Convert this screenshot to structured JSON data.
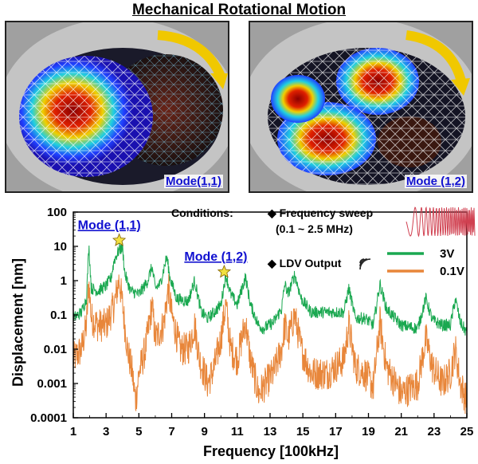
{
  "header": {
    "title": "Mechanical Rotational Motion"
  },
  "panels": [
    {
      "label": "Mode(1,1)"
    },
    {
      "label": "Mode (1,2)"
    }
  ],
  "conditions": {
    "label": "Conditions:",
    "sweep": "◆ Frequency sweep",
    "range": "(0.1 ~ 2.5 MHz)",
    "ldv": "◆ LDV Output"
  },
  "annotations": [
    {
      "text": "Mode (1,1)",
      "freq": 3.8,
      "value": 15
    },
    {
      "text": "Mode (1,2)",
      "freq": 10.2,
      "value": 1.8
    }
  ],
  "colors": {
    "series_3v": "#1aa850",
    "series_01v": "#e8863a",
    "annotation": "#1010d0",
    "star": "#f2e040"
  },
  "chart_data": {
    "type": "line",
    "title": "",
    "xlabel": "Frequency [100kHz]",
    "ylabel": "Displacement [nm]",
    "xlim": [
      1,
      25
    ],
    "ylim": [
      0.0001,
      100
    ],
    "yscale": "log",
    "xticks": [
      1,
      3,
      5,
      7,
      9,
      11,
      13,
      15,
      17,
      19,
      21,
      23,
      25
    ],
    "yticks": [
      0.0001,
      0.001,
      0.01,
      0.1,
      1,
      10,
      100
    ],
    "ytick_labels": [
      "0.0001",
      "0.001",
      "0.01",
      "0.1",
      "1",
      "10",
      "100"
    ],
    "legend": "right",
    "series": [
      {
        "name": "3V",
        "color": "#1aa850",
        "noise": 0.18,
        "points": [
          [
            1.0,
            0.08
          ],
          [
            1.5,
            0.12
          ],
          [
            1.8,
            0.3
          ],
          [
            1.95,
            10
          ],
          [
            2.1,
            0.6
          ],
          [
            2.5,
            0.5
          ],
          [
            3.0,
            0.7
          ],
          [
            3.3,
            1.2
          ],
          [
            3.5,
            4
          ],
          [
            3.8,
            8
          ],
          [
            4.0,
            9
          ],
          [
            4.15,
            1.5
          ],
          [
            4.5,
            0.5
          ],
          [
            5.0,
            0.4
          ],
          [
            5.5,
            0.9
          ],
          [
            5.8,
            2.5
          ],
          [
            6.0,
            0.6
          ],
          [
            6.3,
            0.8
          ],
          [
            6.7,
            5
          ],
          [
            6.9,
            1.2
          ],
          [
            7.3,
            0.3
          ],
          [
            8.0,
            0.25
          ],
          [
            8.4,
            1.0
          ],
          [
            8.8,
            0.12
          ],
          [
            9.2,
            0.08
          ],
          [
            9.6,
            0.12
          ],
          [
            10.0,
            0.2
          ],
          [
            10.3,
            1.5
          ],
          [
            10.6,
            0.4
          ],
          [
            11.0,
            0.2
          ],
          [
            11.5,
            1.3
          ],
          [
            11.8,
            0.2
          ],
          [
            12.3,
            0.05
          ],
          [
            12.6,
            0.04
          ],
          [
            13.2,
            0.06
          ],
          [
            13.7,
            0.15
          ],
          [
            13.9,
            0.8
          ],
          [
            14.1,
            0.4
          ],
          [
            14.5,
            1.5
          ],
          [
            14.9,
            0.3
          ],
          [
            15.5,
            0.12
          ],
          [
            16.5,
            0.12
          ],
          [
            17.5,
            0.12
          ],
          [
            17.8,
            0.6
          ],
          [
            18.2,
            0.08
          ],
          [
            18.8,
            0.08
          ],
          [
            19.3,
            0.05
          ],
          [
            19.7,
            0.8
          ],
          [
            20.1,
            0.15
          ],
          [
            21.0,
            0.05
          ],
          [
            22.0,
            0.04
          ],
          [
            22.5,
            0.3
          ],
          [
            22.9,
            0.07
          ],
          [
            23.5,
            0.05
          ],
          [
            24.0,
            0.05
          ],
          [
            24.3,
            0.3
          ],
          [
            24.6,
            0.06
          ],
          [
            25.0,
            0.03
          ]
        ]
      },
      {
        "name": "0.1V",
        "color": "#e8863a",
        "noise": 0.5,
        "points": [
          [
            1.0,
            0.005
          ],
          [
            1.5,
            0.01
          ],
          [
            1.8,
            0.05
          ],
          [
            1.95,
            0.9
          ],
          [
            2.1,
            0.08
          ],
          [
            2.5,
            0.05
          ],
          [
            3.0,
            0.05
          ],
          [
            3.5,
            0.2
          ],
          [
            3.8,
            1.1
          ],
          [
            4.0,
            0.2
          ],
          [
            4.3,
            0.01
          ],
          [
            4.6,
            0.002
          ],
          [
            4.8,
            0.0003
          ],
          [
            5.0,
            0.002
          ],
          [
            5.4,
            0.01
          ],
          [
            5.8,
            0.2
          ],
          [
            6.0,
            0.02
          ],
          [
            6.5,
            0.05
          ],
          [
            6.8,
            0.6
          ],
          [
            7.0,
            0.1
          ],
          [
            7.5,
            0.01
          ],
          [
            8.0,
            0.01
          ],
          [
            8.4,
            0.05
          ],
          [
            8.7,
            0.005
          ],
          [
            9.2,
            0.001
          ],
          [
            9.6,
            0.003
          ],
          [
            10.0,
            0.02
          ],
          [
            10.3,
            0.2
          ],
          [
            10.6,
            0.01
          ],
          [
            11.0,
            0.005
          ],
          [
            11.5,
            0.06
          ],
          [
            11.8,
            0.005
          ],
          [
            12.3,
            0.0005
          ],
          [
            12.6,
            0.0008
          ],
          [
            13.2,
            0.002
          ],
          [
            13.7,
            0.01
          ],
          [
            13.9,
            0.05
          ],
          [
            14.1,
            0.02
          ],
          [
            14.5,
            0.1
          ],
          [
            14.9,
            0.01
          ],
          [
            15.5,
            0.002
          ],
          [
            16.5,
            0.002
          ],
          [
            17.5,
            0.005
          ],
          [
            17.8,
            0.05
          ],
          [
            18.2,
            0.003
          ],
          [
            18.8,
            0.002
          ],
          [
            19.3,
            0.0008
          ],
          [
            19.7,
            0.06
          ],
          [
            20.1,
            0.003
          ],
          [
            21.0,
            0.0005
          ],
          [
            22.0,
            0.001
          ],
          [
            22.5,
            0.02
          ],
          [
            22.9,
            0.003
          ],
          [
            23.5,
            0.001
          ],
          [
            24.0,
            0.002
          ],
          [
            24.3,
            0.01
          ],
          [
            24.6,
            0.001
          ],
          [
            25.0,
            0.0003
          ]
        ]
      }
    ]
  }
}
